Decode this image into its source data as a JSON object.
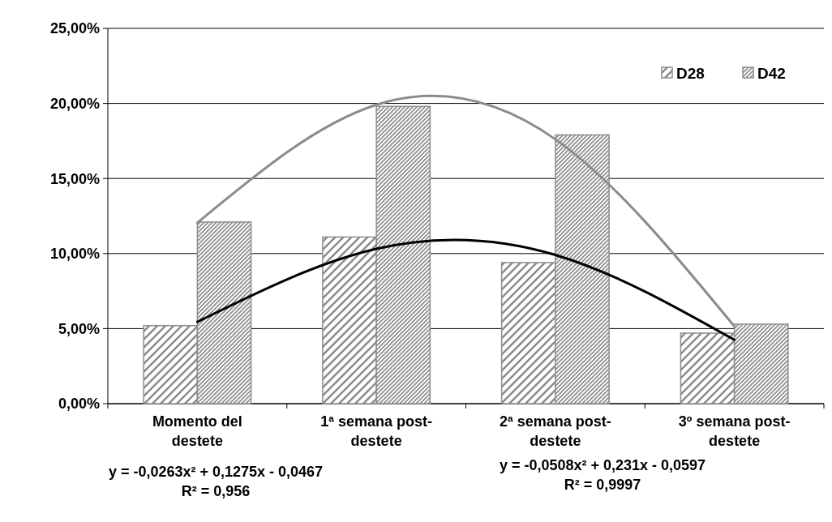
{
  "chart_data": {
    "type": "bar",
    "categories": [
      "Momento del destete",
      "1ª semana post-destete",
      "2ª semana post-destete",
      "3º semana post-destete"
    ],
    "ylim": [
      0,
      25
    ],
    "yticks": [
      {
        "value": 0,
        "label": "0,00%"
      },
      {
        "value": 5,
        "label": "5,00%"
      },
      {
        "value": 10,
        "label": "10,00%"
      },
      {
        "value": 15,
        "label": "15,00%"
      },
      {
        "value": 20,
        "label": "20,00%"
      },
      {
        "value": 25,
        "label": "25,00%"
      }
    ],
    "grid": "y",
    "legend": "top right",
    "series": [
      {
        "name": "D28",
        "color": "#8c8c8c",
        "values": [
          5.2,
          11.1,
          9.4,
          4.7
        ]
      },
      {
        "name": "D42",
        "color": "#8c8c8c",
        "values": [
          12.1,
          19.8,
          17.9,
          5.3
        ]
      },
      {
        "type": "line",
        "color": "#000000",
        "values": [
          5.45,
          10.31,
          9.91,
          4.25
        ]
      },
      {
        "type": "line",
        "color": "#8c8c8c",
        "values": [
          12.05,
          19.91,
          17.61,
          5.15
        ]
      }
    ],
    "annotations": [
      "y = -0,0263x² + 0,1275x - 0,0467",
      "R² = 0,956",
      "y = -0,0508x² + 0,231x - 0,0597",
      "R² = 0,9997"
    ]
  }
}
